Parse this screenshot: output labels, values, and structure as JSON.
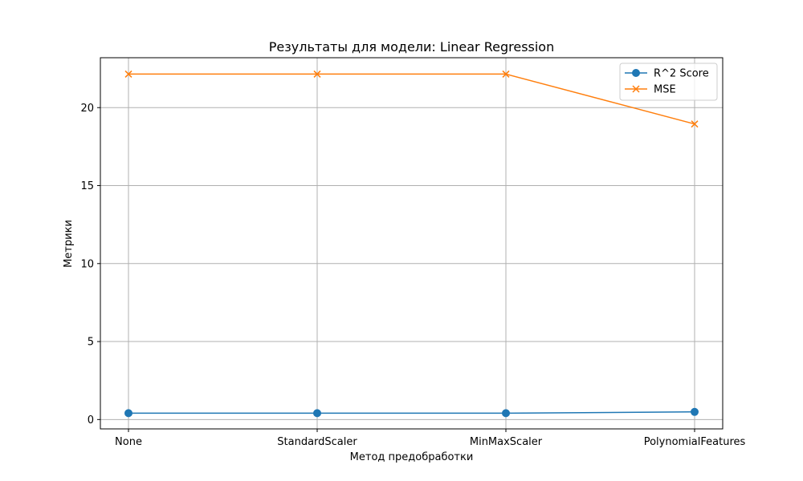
{
  "chart_data": {
    "type": "line",
    "title": "Результаты для модели: Linear Regression",
    "xlabel": "Метод предобработки",
    "ylabel": "Метрики",
    "categories": [
      "None",
      "StandardScaler",
      "MinMaxScaler",
      "PolynomialFeatures"
    ],
    "series": [
      {
        "name": "R^2 Score",
        "values": [
          0.41,
          0.41,
          0.41,
          0.49
        ],
        "color": "#1f77b4",
        "marker": "circle"
      },
      {
        "name": "MSE",
        "values": [
          22.15,
          22.15,
          22.15,
          18.95
        ],
        "color": "#ff7f0e",
        "marker": "x"
      }
    ],
    "yticks": [
      0,
      5,
      10,
      15,
      20
    ],
    "ylim": [
      -0.6,
      23.2
    ],
    "grid": true,
    "legend_position": "top-right"
  }
}
